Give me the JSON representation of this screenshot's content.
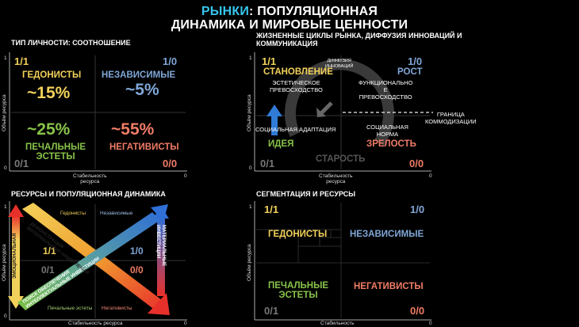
{
  "title": {
    "accent": "РЫНКИ",
    "rest1": ": ПОПУЛЯЦИОННАЯ",
    "line2": "ДИНАМИКА И МИРОВЫЕ ЦЕННОСТИ"
  },
  "panel_tl": {
    "title": "ТИП ЛИЧНОСТИ: СООТНОШЕНИЕ",
    "y_label": "Объём ресурса",
    "x_label_1": "Стабильность",
    "x_label_2": "ресурса",
    "tick_y_top": "1",
    "tick_y_bottom": "0",
    "tick_x_right": "0",
    "corner_11": "1/1",
    "corner_10": "1/0",
    "corner_01": "0/1",
    "corner_00": "0/0",
    "hedonists": "ГЕДОНИСТЫ",
    "hedonists_pct": "~15%",
    "independent": "НЕЗАВИСИМЫЕ",
    "independent_pct": "~5%",
    "sad_pct": "~25%",
    "sad_1": "ПЕЧАЛЬНЫЕ",
    "sad_2": "ЭСТЕТЫ",
    "negativists_pct": "~55%",
    "negativists": "НЕГАТИВИСТЫ"
  },
  "panel_tr": {
    "title_1": "ЖИЗНЕННЫЕ ЦИКЛЫ РЫНКА, ДИФФУЗИЯ ИННОВАЦИЙ И",
    "title_2": "КОММУНИКАЦИЯ",
    "y_label": "Объём ресурса",
    "x_label_1": "Стабильность",
    "x_label_2": "ресурса",
    "tick_y_top": "1",
    "tick_y_bottom": "0",
    "tick_x_right": "0",
    "corner_11": "1/1",
    "corner_10": "1/0",
    "corner_01": "0/1",
    "corner_00": "0/0",
    "formation": "СТАНОВЛЕНИЕ",
    "diffusion_1": "ДИФФУЗИЯ",
    "diffusion_2": "ИННОВАЦИЙ",
    "growth": "РОСТ",
    "aesthetic_1": "ЭСТЕТИЧЕСКОЕ",
    "aesthetic_2": "ПРЕВОСХОДСТВО",
    "functional_1": "ФУНКЦИОНАЛЬНО",
    "functional_2": "Е",
    "functional_3": "ПРЕВОСХОДСТВО",
    "boundary_1": "ГРАНИЦА",
    "boundary_2": "КОММОДИЗАЦИИ",
    "social_adapt": "СОЦИАЛЬНАЯ АДАПТАЦИЯ",
    "social_norm_1": "СОЦИАЛЬНАЯ",
    "social_norm_2": "НОРМА",
    "idea": "ИДЕЯ",
    "maturity": "ЗРЕЛОСТЬ",
    "old_age": "СТАРОСТЬ"
  },
  "panel_bl": {
    "title": "РЕСУРСЫ И ПОПУЛЯЦИОННАЯ ДИНАМИКА",
    "y_label": "Объём ресурса",
    "x_label": "Стабильность ресурса",
    "tick_y_top": "1",
    "tick_y_bottom": "0",
    "tick_x_right": "0",
    "hedonists": "Гедонисты",
    "independent": "Независимые",
    "sad": "Печальные эстеты",
    "negativists": "Негативисты",
    "corner_11": "1/1",
    "corner_10": "1/0",
    "corner_01": "0/1",
    "corner_00": "0/0",
    "arrow_demonstration_1": "ДЕМОНСТРАЦИЯ",
    "arrow_demonstration_2": "МАТЕРИАЛЬНЫХ НАКОПЛЕНИЙ",
    "arrow_emotional": "ЭМОЦИОНАЛЬНАЯ",
    "arrow_material_1": "МАТЕРИАЛЬНЫЕ",
    "arrow_material_2": "ИНВЕСТИЦИИ",
    "arrow_search_1": "ПОИСК ОБЕСПЕЧЕНИЯ",
    "arrow_search_2": "ИНТЕЛЛЕКТУАЛЬНЫЕ ИНВЕСТИЦИИ"
  },
  "panel_br": {
    "title": "СЕГМЕНТАЦИЯ И РЕСУРСЫ",
    "y_label": "Объём ресурса",
    "x_label": "Стабильность",
    "tick_y_top": "1",
    "tick_x_right": "0",
    "corner_11": "1/1",
    "corner_10": "1/0",
    "corner_01": "0/1",
    "corner_00": "0/0",
    "hedonists": "ГЕДОНИСТЫ",
    "independent": "НЕЗАВИСИМЫЕ",
    "sad_1": "ПЕЧАЛЬНЫЕ",
    "sad_2": "ЭСТЕТЫ",
    "negativists": "НЕГАТИВИСТЫ"
  },
  "colors": {
    "accent": "#37c6ee",
    "yellow": "#f2d15a",
    "blue": "#7fa6d6",
    "green": "#88c34a",
    "red": "#f07c66",
    "arrow_blue": "#2f7bd6"
  }
}
